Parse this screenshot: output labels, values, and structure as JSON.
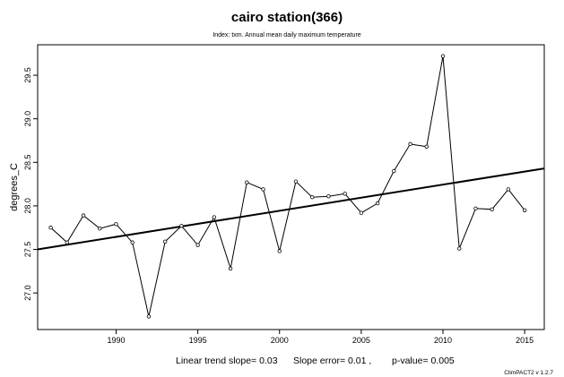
{
  "chart_data": {
    "type": "line",
    "title": "cairo station(366)",
    "subtitle": "Index: txm. Annual mean daily maximum temperature",
    "xlabel": "",
    "ylabel": "degrees_C",
    "xlim": [
      1985.2,
      2016.2
    ],
    "ylim": [
      26.58,
      29.85
    ],
    "x_ticks": [
      1990,
      1995,
      2000,
      2005,
      2010,
      2015
    ],
    "y_ticks": [
      27.0,
      27.5,
      28.0,
      28.5,
      29.0,
      29.5
    ],
    "x_tick_labels": [
      "1990",
      "1995",
      "2000",
      "2005",
      "2010",
      "2015"
    ],
    "y_tick_labels": [
      "27.0",
      "27.5",
      "28.0",
      "28.5",
      "29.0",
      "29.5"
    ],
    "series": [
      {
        "x": [
          1986,
          1987,
          1988,
          1989,
          1990,
          1991,
          1992,
          1993,
          1994,
          1995,
          1996,
          1997,
          1998,
          1999,
          2000,
          2001,
          2002,
          2003,
          2004,
          2005,
          2006,
          2007,
          2008,
          2009,
          2010,
          2011,
          2012,
          2013,
          2014,
          2015
        ],
        "values": [
          27.75,
          27.58,
          27.89,
          27.74,
          27.79,
          27.58,
          26.73,
          27.59,
          27.77,
          27.55,
          27.87,
          27.28,
          28.27,
          28.19,
          27.48,
          28.28,
          28.1,
          28.11,
          28.14,
          27.92,
          28.03,
          28.4,
          28.71,
          28.68,
          29.72,
          27.51,
          27.97,
          27.96,
          28.19,
          27.95
        ]
      }
    ],
    "trend_line": {
      "x": [
        1985.2,
        2016.2
      ],
      "y": [
        27.5,
        28.43
      ]
    },
    "line_color": "#000000",
    "trend_color": "#000000",
    "grid": false,
    "footer": {
      "slope": "Linear trend slope= 0.03",
      "error": "Slope error= 0.01 ,",
      "pvalue": "p-value= 0.005"
    },
    "credit": "ClimPACT2 v 1.2.7"
  }
}
